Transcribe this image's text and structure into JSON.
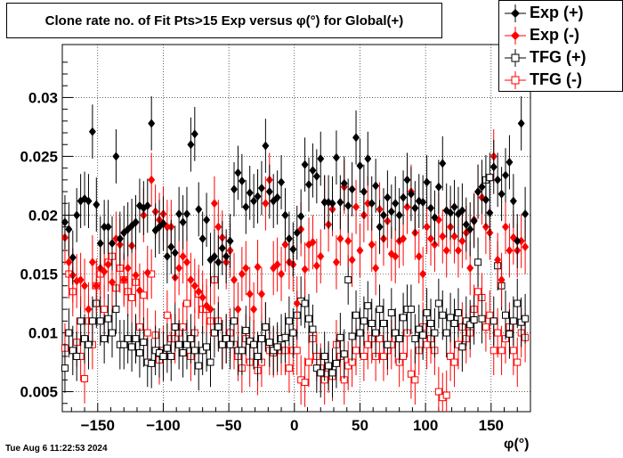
{
  "title": "Clone rate no. of Fit Pts>15 Exp versus φ(°) for Global(+)",
  "timestamp": "Tue Aug  6 11:22:53 2024",
  "xlabel": "φ(°)",
  "legend": [
    {
      "label": "Exp (+)",
      "color": "#000000",
      "marker": "diamond-filled"
    },
    {
      "label": "Exp (-)",
      "color": "#ff0000",
      "marker": "diamond-filled"
    },
    {
      "label": "TFG (+)",
      "color": "#000000",
      "marker": "square-open"
    },
    {
      "label": "TFG (-)",
      "color": "#ff0000",
      "marker": "square-open"
    }
  ],
  "chart_data": {
    "type": "scatter",
    "title": "Clone rate no. of Fit Pts>15 Exp versus φ(°) for Global(+)",
    "xlabel": "φ(°)",
    "ylabel": "",
    "xlim": [
      -177,
      180
    ],
    "ylim": [
      0.0033,
      0.0345
    ],
    "x_ticks": [
      -150,
      -100,
      -50,
      0,
      50,
      100,
      150
    ],
    "y_ticks": [
      0.005,
      0.01,
      0.015,
      0.02,
      0.025,
      0.03
    ],
    "y_tick_labels": [
      "0.005",
      "0.01",
      "0.015",
      "0.02",
      "0.025",
      "0.03"
    ],
    "grid": true,
    "legend_position": "top-right",
    "x": [
      -175,
      -172,
      -169,
      -166,
      -163,
      -160,
      -157,
      -154,
      -151,
      -148,
      -145,
      -142,
      -139,
      -136,
      -133,
      -130,
      -127,
      -124,
      -121,
      -118,
      -115,
      -112,
      -109,
      -106,
      -103,
      -100,
      -97,
      -94,
      -91,
      -88,
      -85,
      -82,
      -79,
      -76,
      -73,
      -70,
      -67,
      -64,
      -61,
      -58,
      -55,
      -52,
      -49,
      -46,
      -43,
      -40,
      -37,
      -34,
      -31,
      -28,
      -25,
      -22,
      -19,
      -16,
      -13,
      -10,
      -7,
      -4,
      -1,
      2,
      5,
      8,
      11,
      14,
      17,
      20,
      23,
      26,
      29,
      32,
      35,
      38,
      41,
      44,
      47,
      50,
      53,
      56,
      59,
      62,
      65,
      68,
      71,
      74,
      77,
      80,
      83,
      86,
      89,
      92,
      95,
      98,
      101,
      104,
      107,
      110,
      113,
      116,
      119,
      122,
      125,
      128,
      131,
      134,
      137,
      140,
      143,
      146,
      149,
      152,
      155,
      158,
      161,
      164,
      167,
      170,
      173,
      176
    ],
    "series": [
      {
        "name": "Exp (+)",
        "color": "#000000",
        "marker": "diamond-filled",
        "y": [
          0.0194,
          0.0188,
          0.0164,
          0.02,
          0.0212,
          0.0214,
          0.0212,
          0.0271,
          0.0209,
          0.0176,
          0.019,
          0.019,
          0.0176,
          0.025,
          0.018,
          0.0185,
          0.0188,
          0.0191,
          0.0194,
          0.0208,
          0.0206,
          0.0208,
          0.0278,
          0.0187,
          0.019,
          0.0193,
          0.0165,
          0.0173,
          0.0168,
          0.0201,
          0.0194,
          0.0201,
          0.026,
          0.0269,
          0.0205,
          0.018,
          0.0196,
          0.0162,
          0.0165,
          0.016,
          0.0172,
          0.0165,
          0.0178,
          0.0222,
          0.0236,
          0.0229,
          0.0207,
          0.0219,
          0.0212,
          0.0216,
          0.0223,
          0.0259,
          0.022,
          0.0212,
          0.0215,
          0.0228,
          0.02,
          0.018,
          0.0171,
          0.0185,
          0.0199,
          0.0243,
          0.0226,
          0.0238,
          0.0233,
          0.0248,
          0.0211,
          0.0211,
          0.021,
          0.0249,
          0.0211,
          0.0227,
          0.0208,
          0.0222,
          0.0266,
          0.0242,
          0.022,
          0.0248,
          0.021,
          0.0225,
          0.019,
          0.02,
          0.0215,
          0.0203,
          0.021,
          0.02,
          0.0215,
          0.023,
          0.0218,
          0.0206,
          0.0212,
          0.0211,
          0.0228,
          0.0206,
          0.0198,
          0.0224,
          0.0244,
          0.0204,
          0.0202,
          0.0207,
          0.0201,
          0.0204,
          0.0192,
          0.0188,
          0.0195,
          0.022,
          0.0224,
          0.0213,
          0.0202,
          0.0241,
          0.023,
          0.0218,
          0.0234,
          0.0245,
          0.0212,
          0.0178,
          0.0278,
          0.0201
        ]
      },
      {
        "name": "Exp (-)",
        "color": "#ff0000",
        "marker": "diamond-filled",
        "y": [
          0.0181,
          0.016,
          0.0149,
          0.0144,
          0.0145,
          0.014,
          0.012,
          0.016,
          0.014,
          0.0155,
          0.0152,
          0.0158,
          0.0143,
          0.018,
          0.0175,
          0.0145,
          0.0155,
          0.0174,
          0.0149,
          0.0136,
          0.02,
          0.0151,
          0.023,
          0.0203,
          0.0196,
          0.0201,
          0.019,
          0.019,
          0.0147,
          0.0155,
          0.0165,
          0.016,
          0.0145,
          0.014,
          0.0135,
          0.013,
          0.0123,
          0.012,
          0.021,
          0.019,
          0.0181,
          0.016,
          0.017,
          0.0145,
          0.012,
          0.015,
          0.0155,
          0.0133,
          0.012,
          0.0156,
          0.0133,
          0.021,
          0.023,
          0.0155,
          0.0158,
          0.015,
          0.0175,
          0.016,
          0.0158,
          0.0125,
          0.0188,
          0.0154,
          0.0175,
          0.0177,
          0.0157,
          0.0165,
          0.0211,
          0.0192,
          0.0205,
          0.016,
          0.018,
          0.0224,
          0.0178,
          0.0162,
          0.0207,
          0.017,
          0.02,
          0.021,
          0.0175,
          0.0155,
          0.0205,
          0.018,
          0.0195,
          0.0167,
          0.0165,
          0.0178,
          0.018,
          0.0207,
          0.022,
          0.0185,
          0.0165,
          0.015,
          0.019,
          0.018,
          0.0175,
          0.0196,
          0.0182,
          0.017,
          0.019,
          0.0182,
          0.017,
          0.0178,
          0.0185,
          0.0155,
          0.0196,
          0.022,
          0.0215,
          0.019,
          0.0185,
          0.025,
          0.0162,
          0.0145,
          0.019,
          0.017,
          0.0181,
          0.017,
          0.0178,
          0.0173
        ]
      },
      {
        "name": "TFG (+)",
        "color": "#000000",
        "marker": "square-open",
        "y": [
          0.007,
          0.01,
          0.0085,
          0.008,
          0.011,
          0.0095,
          0.009,
          0.011,
          0.0125,
          0.011,
          0.0095,
          0.0112,
          0.01,
          0.012,
          0.009,
          0.009,
          0.0095,
          0.0088,
          0.0095,
          0.0083,
          0.0092,
          0.0075,
          0.0074,
          0.0085,
          0.0083,
          0.008,
          0.0087,
          0.008,
          0.0105,
          0.009,
          0.0083,
          0.009,
          0.0095,
          0.0085,
          0.0072,
          0.0085,
          0.0088,
          0.0075,
          0.01,
          0.0105,
          0.009,
          0.0095,
          0.009,
          0.011,
          0.0085,
          0.0085,
          0.0102,
          0.0093,
          0.009,
          0.008,
          0.0095,
          0.0105,
          0.0092,
          0.0085,
          0.0088,
          0.0095,
          0.0096,
          0.011,
          0.01,
          0.0115,
          0.0127,
          0.0125,
          0.0112,
          0.0103,
          0.007,
          0.0066,
          0.008,
          0.0072,
          0.0066,
          0.0074,
          0.0096,
          0.0082,
          0.0145,
          0.0097,
          0.0115,
          0.01,
          0.011,
          0.0123,
          0.0108,
          0.01,
          0.012,
          0.0108,
          0.009,
          0.0117,
          0.01,
          0.0095,
          0.0113,
          0.012,
          0.012,
          0.0095,
          0.0103,
          0.0098,
          0.0117,
          0.0108,
          0.01,
          0.0125,
          0.0115,
          0.01,
          0.0113,
          0.0108,
          0.0117,
          0.0088,
          0.011,
          0.0107,
          0.0111,
          0.016,
          0.0112,
          0.023,
          0.0232,
          0.011,
          0.0157,
          0.014,
          0.0115,
          0.0099,
          0.011,
          0.0125,
          0.0109,
          0.0112
        ]
      },
      {
        "name": "TFG (-)",
        "color": "#ff0000",
        "marker": "square-open",
        "y": [
          0.0087,
          0.015,
          0.0135,
          0.0092,
          0.008,
          0.0061,
          0.011,
          0.009,
          0.014,
          0.015,
          0.012,
          0.016,
          0.0165,
          0.0138,
          0.0155,
          0.0145,
          0.0135,
          0.013,
          0.0143,
          0.0105,
          0.0132,
          0.01,
          0.015,
          0.0098,
          0.0077,
          0.0085,
          0.0115,
          0.0095,
          0.0095,
          0.01,
          0.0105,
          0.0125,
          0.008,
          0.01,
          0.0133,
          0.012,
          0.012,
          0.011,
          0.0145,
          0.011,
          0.009,
          0.0095,
          0.01,
          0.009,
          0.008,
          0.007,
          0.0095,
          0.0075,
          0.009,
          0.0068,
          0.0075,
          0.0105,
          0.0085,
          0.0083,
          0.0085,
          0.0085,
          0.0085,
          0.007,
          0.0085,
          0.0085,
          0.006,
          0.0058,
          0.0075,
          0.0095,
          0.008,
          0.007,
          0.006,
          0.007,
          0.0063,
          0.009,
          0.008,
          0.006,
          0.0072,
          0.0075,
          0.0085,
          0.01,
          0.008,
          0.009,
          0.0095,
          0.008,
          0.0095,
          0.008,
          0.0085,
          0.009,
          0.0095,
          0.0075,
          0.008,
          0.01,
          0.0065,
          0.006,
          0.0085,
          0.0105,
          0.009,
          0.0095,
          0.0085,
          0.005,
          0.0045,
          0.0047,
          0.008,
          0.0075,
          0.009,
          0.0105,
          0.0095,
          0.01,
          0.012,
          0.0135,
          0.013,
          0.0105,
          0.0115,
          0.0085,
          0.01,
          0.0085,
          0.0095,
          0.0105,
          0.0085,
          0.0075,
          0.01,
          0.0096
        ]
      }
    ]
  }
}
